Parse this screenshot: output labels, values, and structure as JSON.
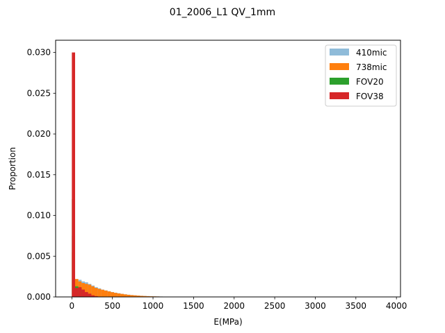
{
  "chart_data": {
    "type": "bar",
    "title": "01_2006_L1 QV_1mm",
    "xlabel": "E(MPa)",
    "ylabel": "Proportion",
    "xlim": [
      -200,
      4050
    ],
    "ylim": [
      0,
      0.0315
    ],
    "xticks": [
      0,
      500,
      1000,
      1500,
      2000,
      2500,
      3000,
      3500,
      4000
    ],
    "xtick_labels": [
      "0",
      "500",
      "1000",
      "1500",
      "2000",
      "2500",
      "3000",
      "3500",
      "4000"
    ],
    "yticks": [
      0,
      0.005,
      0.01,
      0.015,
      0.02,
      0.025,
      0.03
    ],
    "ytick_labels": [
      "0.000",
      "0.005",
      "0.010",
      "0.015",
      "0.020",
      "0.025",
      "0.030"
    ],
    "grid": false,
    "legend_position": "upper right",
    "bin_width": 40,
    "series": [
      {
        "name": "410mic",
        "color": "#1f77b4",
        "opacity": 0.5,
        "bins": [
          [
            0,
            0.0075
          ],
          [
            40,
            0.0019
          ],
          [
            80,
            0.0021
          ],
          [
            120,
            0.0019
          ],
          [
            160,
            0.0018
          ],
          [
            200,
            0.0016
          ],
          [
            240,
            0.0014
          ],
          [
            280,
            0.0012
          ],
          [
            320,
            0.00105
          ],
          [
            360,
            0.0009
          ],
          [
            400,
            0.0008
          ],
          [
            440,
            0.0007
          ],
          [
            480,
            0.0006
          ],
          [
            520,
            0.00052
          ],
          [
            560,
            0.00045
          ],
          [
            600,
            0.00038
          ],
          [
            640,
            0.00032
          ],
          [
            680,
            0.00027
          ],
          [
            720,
            0.00023
          ],
          [
            760,
            0.0002
          ],
          [
            800,
            0.00017
          ],
          [
            840,
            0.00014
          ],
          [
            880,
            0.00012
          ],
          [
            920,
            0.0001
          ],
          [
            960,
            8e-05
          ],
          [
            1000,
            7e-05
          ],
          [
            1040,
            6e-05
          ],
          [
            1080,
            5e-05
          ],
          [
            1120,
            4e-05
          ],
          [
            1160,
            3e-05
          ],
          [
            1200,
            2.5e-05
          ],
          [
            1240,
            2e-05
          ],
          [
            1280,
            1.5e-05
          ],
          [
            1320,
            1e-05
          ]
        ]
      },
      {
        "name": "738mic",
        "color": "#ff7f0e",
        "opacity": 1,
        "bins": [
          [
            0,
            0.0055
          ],
          [
            40,
            0.0022
          ],
          [
            80,
            0.0019
          ],
          [
            120,
            0.0017
          ],
          [
            160,
            0.0016
          ],
          [
            200,
            0.0015
          ],
          [
            240,
            0.0013
          ],
          [
            280,
            0.0011
          ],
          [
            320,
            0.00098
          ],
          [
            360,
            0.00088
          ],
          [
            400,
            0.00078
          ],
          [
            440,
            0.00068
          ],
          [
            480,
            0.00058
          ],
          [
            520,
            0.0005
          ],
          [
            560,
            0.00043
          ],
          [
            600,
            0.00037
          ],
          [
            640,
            0.00031
          ],
          [
            680,
            0.00026
          ],
          [
            720,
            0.00022
          ],
          [
            760,
            0.00019
          ],
          [
            800,
            0.00016
          ],
          [
            840,
            0.00013
          ],
          [
            880,
            0.00011
          ],
          [
            920,
            9e-05
          ],
          [
            960,
            7.5e-05
          ],
          [
            1000,
            6.5e-05
          ],
          [
            1040,
            5.5e-05
          ],
          [
            1080,
            4.5e-05
          ],
          [
            1120,
            3.5e-05
          ],
          [
            1160,
            3e-05
          ],
          [
            1200,
            2.2e-05
          ],
          [
            1240,
            1.8e-05
          ],
          [
            1280,
            1.3e-05
          ],
          [
            1320,
            1e-05
          ]
        ]
      },
      {
        "name": "FOV20",
        "color": "#2ca02c",
        "opacity": 1,
        "bins": [
          [
            0,
            0.012
          ],
          [
            40,
            0.0013
          ],
          [
            80,
            0.0011
          ],
          [
            120,
            0.0008
          ],
          [
            160,
            0.0005
          ],
          [
            200,
            0.0003
          ],
          [
            240,
            0.00015
          ],
          [
            280,
            8e-05
          ]
        ]
      },
      {
        "name": "FOV38",
        "color": "#d62728",
        "opacity": 1,
        "bins": [
          [
            0,
            0.03
          ],
          [
            40,
            0.0011
          ],
          [
            80,
            0.0012
          ],
          [
            120,
            0.0009
          ],
          [
            160,
            0.0006
          ],
          [
            200,
            0.0004
          ],
          [
            240,
            0.0002
          ],
          [
            280,
            0.0001
          ]
        ]
      }
    ]
  }
}
